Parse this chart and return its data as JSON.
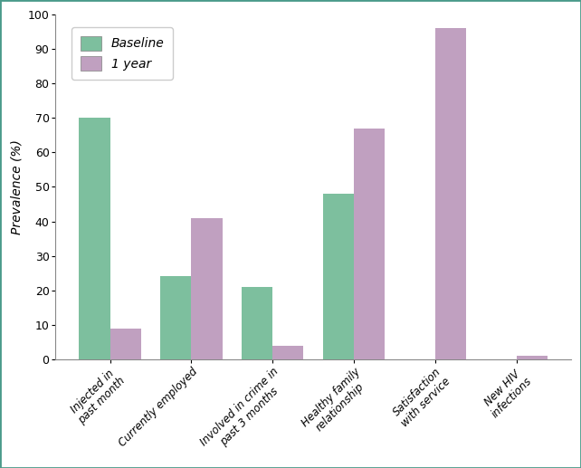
{
  "categories": [
    "Injected in\npast month",
    "Currently employed",
    "Involved in crime in\npast 3 months",
    "Healthy family\nrelationship",
    "Satisfaction\nwith service",
    "New HIV\ninfections"
  ],
  "baseline": [
    70,
    24,
    21,
    48,
    0,
    0
  ],
  "one_year": [
    9,
    41,
    4,
    67,
    96,
    1
  ],
  "baseline_color": "#7dbf9e",
  "one_year_color": "#c0a0c0",
  "ylabel": "Prevalence (%)",
  "ylim": [
    0,
    100
  ],
  "yticks": [
    0,
    10,
    20,
    30,
    40,
    50,
    60,
    70,
    80,
    90,
    100
  ],
  "legend_labels": [
    "Baseline",
    "1 year"
  ],
  "bar_width": 0.38,
  "plot_bg": "#ffffff",
  "figure_bg": "#ffffff",
  "border_color": "#4a9a8a",
  "spine_color": "#888888",
  "tick_label_fontsize": 8.5,
  "ylabel_fontsize": 10
}
